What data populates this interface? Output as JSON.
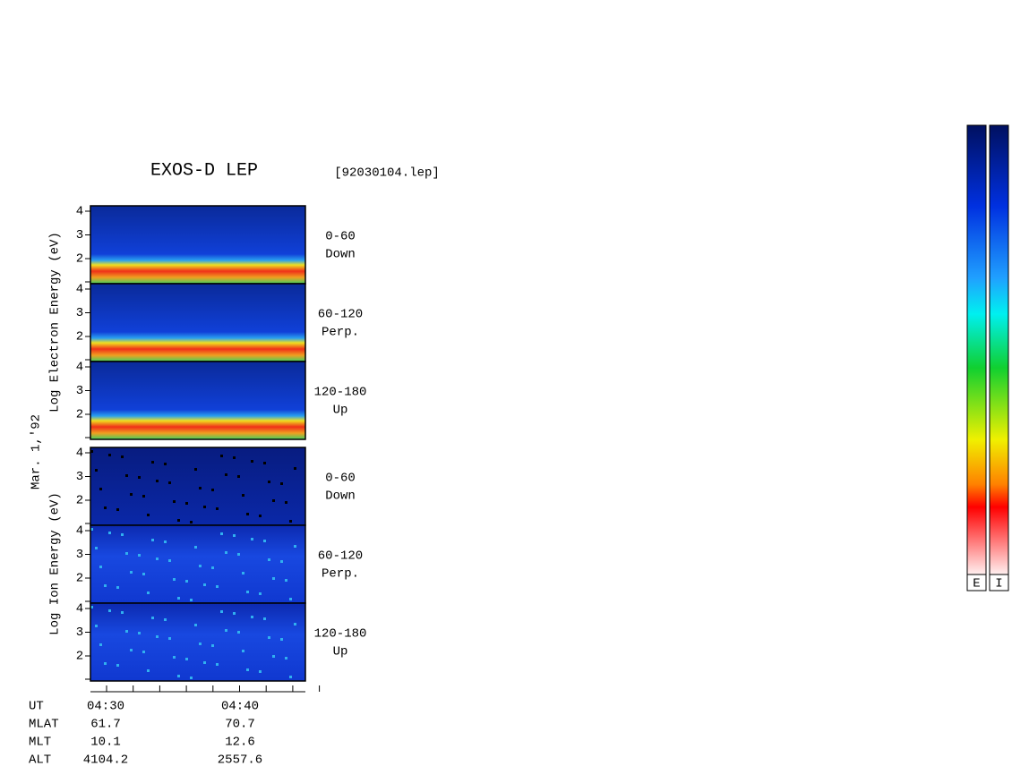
{
  "header": {
    "title": "EXOS-D LEP",
    "file": "[92030104.lep]"
  },
  "date": "Mar. 1,'92",
  "axis_labels": {
    "electron": "Log  Electron  Energy (eV)",
    "ion": "Log  Ion  Energy (eV)"
  },
  "panels": [
    {
      "angle": "0-60",
      "direction": "Down",
      "yticks": [
        "4",
        "3",
        "2"
      ]
    },
    {
      "angle": "60-120",
      "direction": "Perp.",
      "yticks": [
        "4",
        "3",
        "2"
      ]
    },
    {
      "angle": "120-180",
      "direction": "Up",
      "yticks": [
        "4",
        "3",
        "2"
      ]
    },
    {
      "angle": "0-60",
      "direction": "Down",
      "yticks": [
        "4",
        "3",
        "2"
      ]
    },
    {
      "angle": "60-120",
      "direction": "Perp.",
      "yticks": [
        "4",
        "3",
        "2"
      ]
    },
    {
      "angle": "120-180",
      "direction": "Up",
      "yticks": [
        "4",
        "3",
        "2"
      ]
    }
  ],
  "footer": {
    "rows": [
      {
        "label": "UT",
        "values": [
          "04:30",
          "04:40"
        ]
      },
      {
        "label": "MLAT",
        "values": [
          "61.7",
          "70.7"
        ]
      },
      {
        "label": "MLT",
        "values": [
          "10.1",
          "12.6"
        ]
      },
      {
        "label": "ALT",
        "values": [
          "4104.2",
          "2557.6"
        ]
      }
    ]
  },
  "colorbar_labels": [
    "E",
    "I"
  ]
}
